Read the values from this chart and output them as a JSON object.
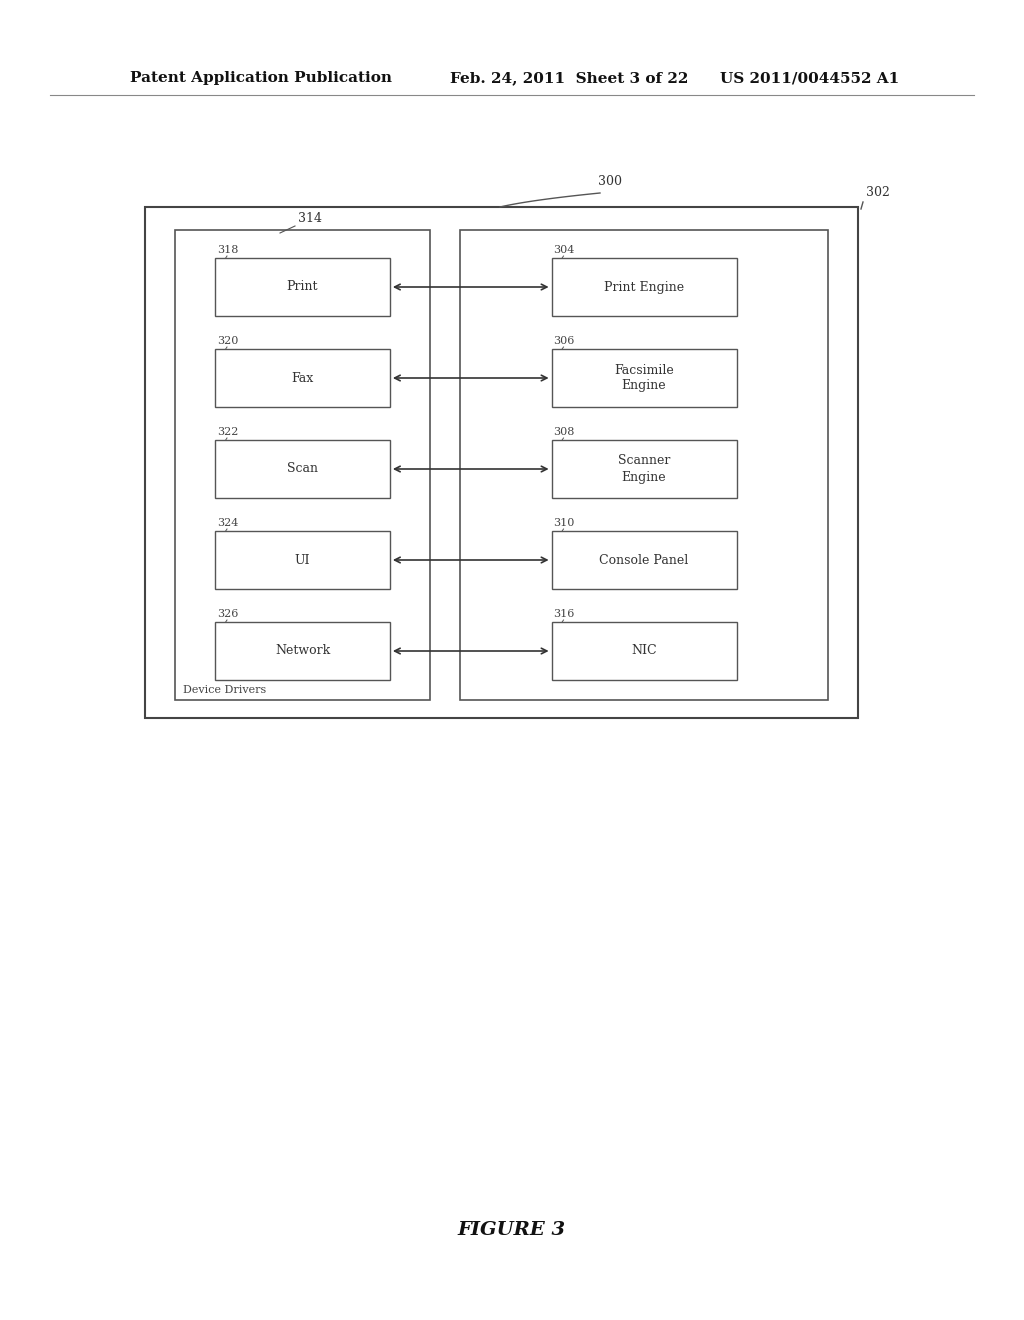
{
  "bg_color": "#ffffff",
  "header_text": "Patent Application Publication",
  "header_date": "Feb. 24, 2011  Sheet 3 of 22",
  "header_patent": "US 2011/0044552 A1",
  "figure_label": "FIGURE 3",
  "device_drivers_label": "Device Drivers",
  "left_boxes": [
    {
      "label": "318",
      "text": "Print"
    },
    {
      "label": "320",
      "text": "Fax"
    },
    {
      "label": "322",
      "text": "Scan"
    },
    {
      "label": "324",
      "text": "UI"
    },
    {
      "label": "326",
      "text": "Network"
    }
  ],
  "right_boxes": [
    {
      "label": "304",
      "text": "Print Engine"
    },
    {
      "label": "306",
      "text": "Facsimile\nEngine"
    },
    {
      "label": "308",
      "text": "Scanner\nEngine"
    },
    {
      "label": "310",
      "text": "Console Panel"
    },
    {
      "label": "316",
      "text": "NIC"
    }
  ]
}
